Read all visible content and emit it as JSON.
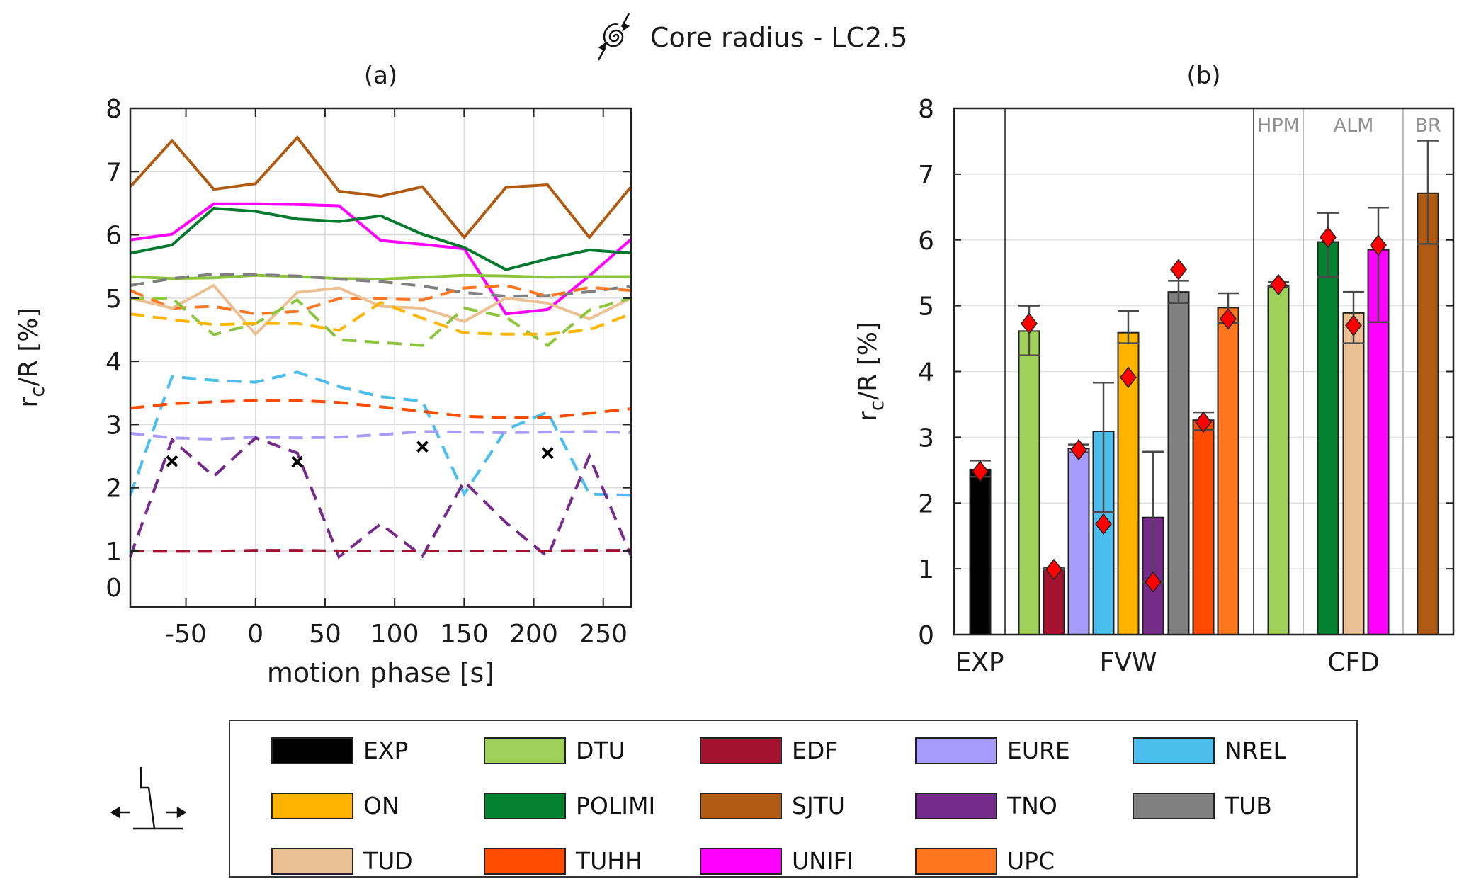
{
  "figure": {
    "title": "Core radius - LC2.5",
    "title_icon": "vortex-spiral-icon",
    "motion_icon": "floating-turbine-surge-icon"
  },
  "legend": [
    {
      "name": "EXP",
      "color": "#000000"
    },
    {
      "name": "DTU",
      "color": "#9fd05a"
    },
    {
      "name": "EDF",
      "color": "#a3122e"
    },
    {
      "name": "EURE",
      "color": "#a79cfb"
    },
    {
      "name": "NREL",
      "color": "#4bbeed"
    },
    {
      "name": "ON",
      "color": "#ffb400"
    },
    {
      "name": "POLIMI",
      "color": "#058230"
    },
    {
      "name": "SJTU",
      "color": "#b05a12"
    },
    {
      "name": "TNO",
      "color": "#762a8a"
    },
    {
      "name": "TUB",
      "color": "#808080"
    },
    {
      "name": "TUD",
      "color": "#ebc194"
    },
    {
      "name": "TUHH",
      "color": "#ff4b00"
    },
    {
      "name": "UNIFI",
      "color": "#ff00ff"
    },
    {
      "name": "UPC",
      "color": "#ff7620"
    }
  ],
  "chart_data": [
    {
      "id": "a",
      "type": "line",
      "title": "(a)",
      "xlabel": "motion phase [s]",
      "ylabel": "r_c/R [%]",
      "xlim": [
        -90,
        270
      ],
      "ylim": [
        -0.9,
        8
      ],
      "xticks": [
        -50,
        0,
        50,
        100,
        150,
        200,
        250
      ],
      "yticks": [
        0,
        1,
        2,
        3,
        4,
        5,
        6,
        7,
        8
      ],
      "grid": true,
      "x": [
        -90,
        -60,
        -30,
        0,
        30,
        60,
        90,
        120,
        150,
        180,
        210,
        240,
        270
      ],
      "series": [
        {
          "name": "SJTU",
          "style": "solid",
          "color": "#b05a12",
          "values": [
            6.76,
            7.49,
            6.72,
            6.81,
            7.54,
            6.69,
            6.61,
            6.76,
            5.96,
            6.75,
            6.79,
            5.96,
            6.76
          ]
        },
        {
          "name": "UNIFI",
          "style": "solid",
          "color": "#ff00ff",
          "values": [
            5.92,
            6.01,
            6.49,
            6.49,
            6.48,
            6.46,
            5.91,
            5.85,
            5.78,
            4.75,
            4.82,
            5.35,
            5.93
          ]
        },
        {
          "name": "POLIMI",
          "style": "solid",
          "color": "#057a2e",
          "values": [
            5.71,
            5.84,
            6.42,
            6.37,
            6.25,
            6.21,
            6.3,
            6.01,
            5.8,
            5.45,
            5.62,
            5.76,
            5.71
          ]
        },
        {
          "name": "DTU (HPM)",
          "style": "solid",
          "color": "#8cc43e",
          "values": [
            5.34,
            5.31,
            5.32,
            5.36,
            5.34,
            5.31,
            5.3,
            5.33,
            5.36,
            5.35,
            5.33,
            5.34,
            5.34
          ]
        },
        {
          "name": "TUB",
          "style": "dashed",
          "color": "#808080",
          "values": [
            5.2,
            5.31,
            5.38,
            5.37,
            5.35,
            5.3,
            5.26,
            5.19,
            5.09,
            5.03,
            5.04,
            5.1,
            5.19
          ]
        },
        {
          "name": "UPC",
          "style": "dashed",
          "color": "#ff7620",
          "values": [
            5.12,
            4.84,
            4.87,
            4.75,
            4.79,
            4.99,
            4.99,
            4.97,
            5.16,
            5.2,
            5.03,
            5.17,
            5.12
          ]
        },
        {
          "name": "TUD",
          "style": "solid",
          "color": "#ebc194",
          "values": [
            5.0,
            4.84,
            5.2,
            4.43,
            5.09,
            5.16,
            4.87,
            4.84,
            4.63,
            5.0,
            4.92,
            4.67,
            5.0
          ]
        },
        {
          "name": "DTU (FVW)",
          "style": "dashed",
          "color": "#8cc43e",
          "values": [
            5.0,
            5.0,
            4.42,
            4.6,
            4.97,
            4.34,
            4.3,
            4.25,
            4.84,
            4.7,
            4.25,
            4.81,
            5.0
          ]
        },
        {
          "name": "ON",
          "style": "dashed",
          "color": "#ffb400",
          "values": [
            4.75,
            4.66,
            4.58,
            4.6,
            4.6,
            4.49,
            4.93,
            4.68,
            4.45,
            4.43,
            4.43,
            4.5,
            4.75
          ]
        },
        {
          "name": "NREL",
          "style": "dashed",
          "color": "#4bbeed",
          "values": [
            1.88,
            3.76,
            3.7,
            3.67,
            3.83,
            3.6,
            3.44,
            3.37,
            1.9,
            2.92,
            3.2,
            1.9,
            1.88
          ]
        },
        {
          "name": "TUHH",
          "style": "dashed",
          "color": "#ff4b00",
          "values": [
            3.26,
            3.33,
            3.36,
            3.38,
            3.38,
            3.35,
            3.28,
            3.21,
            3.13,
            3.11,
            3.11,
            3.18,
            3.25
          ]
        },
        {
          "name": "EURE",
          "style": "dashed",
          "color": "#a79cfb",
          "values": [
            2.86,
            2.79,
            2.77,
            2.8,
            2.79,
            2.8,
            2.84,
            2.89,
            2.88,
            2.87,
            2.88,
            2.89,
            2.87
          ]
        },
        {
          "name": "TNO",
          "style": "dashed",
          "color": "#762a8a",
          "values": [
            0.8,
            2.76,
            2.18,
            2.79,
            2.55,
            0.8,
            1.43,
            0.82,
            2.1,
            1.45,
            0.8,
            2.5,
            0.83
          ]
        },
        {
          "name": "EDF",
          "style": "dashed",
          "color": "#a3122e",
          "values": [
            1.0,
            0.99,
            0.99,
            1.01,
            1.01,
            1.0,
            1.0,
            1.0,
            1.0,
            1.0,
            1.0,
            1.01,
            1.01
          ]
        }
      ],
      "markers": {
        "name": "EXP",
        "symbol": "x",
        "color": "#000000",
        "x": [
          -60,
          30,
          120,
          210
        ],
        "y": [
          2.42,
          2.41,
          2.65,
          2.55
        ]
      }
    },
    {
      "id": "b",
      "type": "bar",
      "title": "(b)",
      "xlabel": "",
      "ylabel": "r_c/R [%]",
      "ylim": [
        0,
        8
      ],
      "yticks": [
        0,
        1,
        2,
        3,
        4,
        5,
        6,
        7,
        8
      ],
      "grid": true,
      "group_labels": [
        "EXP",
        "FVW",
        "CFD"
      ],
      "subgroup_labels": [
        "HPM",
        "ALM",
        "BR"
      ],
      "bars": [
        {
          "name": "EXP",
          "group": "EXP",
          "color": "#000000",
          "value": 2.51,
          "err_low": 2.4,
          "err_high": 2.645,
          "diamond": 2.48
        },
        {
          "name": "DTU",
          "group": "FVW",
          "color": "#9fd05a",
          "value": 4.615,
          "err_low": 4.245,
          "err_high": 5.0,
          "diamond": 4.73
        },
        {
          "name": "EDF",
          "group": "FVW",
          "color": "#a3122e",
          "value": 1.0,
          "err_low": 0.99,
          "err_high": 1.01,
          "diamond": 0.99
        },
        {
          "name": "EURE",
          "group": "FVW",
          "color": "#a79cfb",
          "value": 2.83,
          "err_low": 2.77,
          "err_high": 2.89,
          "diamond": 2.81
        },
        {
          "name": "NREL",
          "group": "FVW",
          "color": "#4bbeed",
          "value": 3.09,
          "err_low": 1.86,
          "err_high": 3.83,
          "diamond": 1.68
        },
        {
          "name": "ON",
          "group": "FVW",
          "color": "#ffb400",
          "value": 4.59,
          "err_low": 4.43,
          "err_high": 4.92,
          "diamond": 3.91
        },
        {
          "name": "TNO",
          "group": "FVW",
          "color": "#762a8a",
          "value": 1.78,
          "err_low": 0.8,
          "err_high": 2.78,
          "diamond": 0.8
        },
        {
          "name": "TUB",
          "group": "FVW",
          "color": "#808080",
          "value": 5.21,
          "err_low": 5.04,
          "err_high": 5.38,
          "diamond": 5.55
        },
        {
          "name": "TUHH",
          "group": "FVW",
          "color": "#ff4b00",
          "value": 3.26,
          "err_low": 3.11,
          "err_high": 3.38,
          "diamond": 3.23
        },
        {
          "name": "UPC",
          "group": "FVW",
          "color": "#ff7620",
          "value": 4.97,
          "err_low": 4.74,
          "err_high": 5.19,
          "diamond": 4.8
        },
        {
          "name": "DTU",
          "group": "CFD-HPM",
          "color": "#9fd05a",
          "value": 5.31,
          "err_low": 5.29,
          "err_high": 5.36,
          "diamond": 5.32
        },
        {
          "name": "POLIMI",
          "group": "CFD-ALM",
          "color": "#058230",
          "value": 5.97,
          "err_low": 5.44,
          "err_high": 6.41,
          "diamond": 6.04
        },
        {
          "name": "TUD",
          "group": "CFD-ALM",
          "color": "#ebc194",
          "value": 4.89,
          "err_low": 4.43,
          "err_high": 5.21,
          "diamond": 4.7
        },
        {
          "name": "UNIFI",
          "group": "CFD-ALM",
          "color": "#ff00ff",
          "value": 5.85,
          "err_low": 4.75,
          "err_high": 6.49,
          "diamond": 5.92
        },
        {
          "name": "SJTU",
          "group": "CFD-BR",
          "color": "#b05a12",
          "value": 6.71,
          "err_low": 5.94,
          "err_high": 7.51,
          "diamond": null
        }
      ]
    }
  ]
}
